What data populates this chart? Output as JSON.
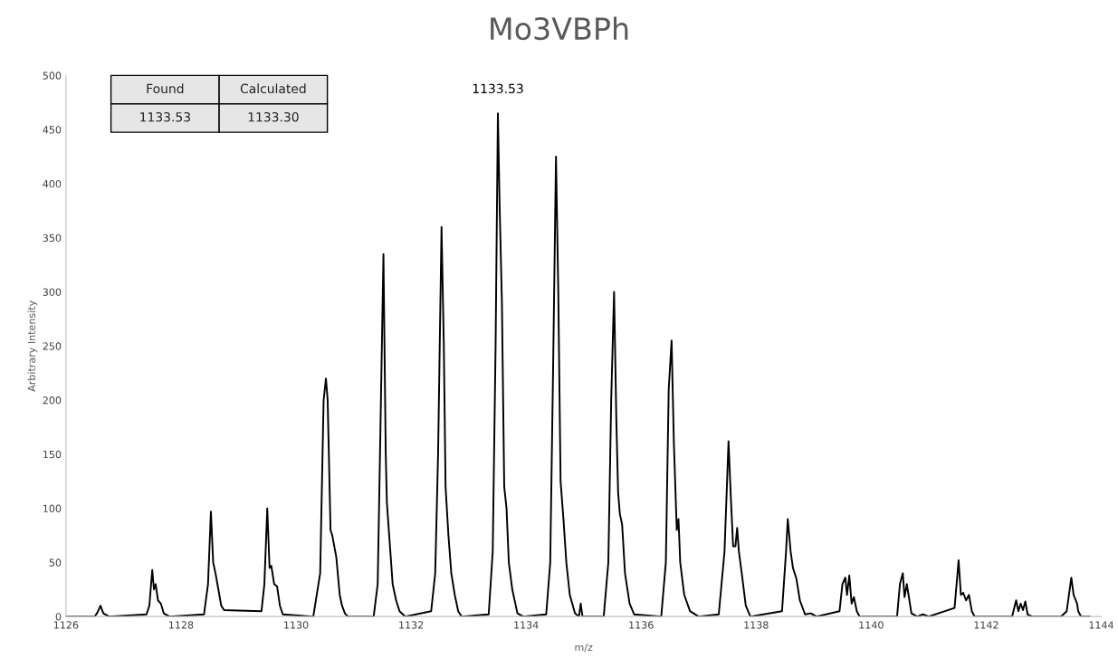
{
  "chart_data": {
    "type": "line",
    "title": "Mo3VBPh",
    "xlabel": "m/z",
    "ylabel": "Arbitrary Intensity",
    "xlim": [
      1126,
      1144
    ],
    "xticks": [
      1126,
      1128,
      1130,
      1132,
      1134,
      1136,
      1138,
      1140,
      1142,
      1144
    ],
    "ylim": [
      0,
      500
    ],
    "yticks": [
      0,
      50,
      100,
      150,
      200,
      250,
      300,
      350,
      400,
      450,
      500
    ],
    "grid": false,
    "legend": false,
    "marker": "none",
    "line_style": "solid",
    "annotations": [
      "Found",
      "Calculated",
      "1133.53",
      "1133.30",
      {
        "text": "1133.53",
        "x": 1133.51,
        "y": 465
      }
    ],
    "series": [
      {
        "color": "#000000",
        "x": [
          1126.0,
          1126.5,
          1126.55,
          1126.6,
          1126.65,
          1126.75,
          1127.4,
          1127.45,
          1127.5,
          1127.53,
          1127.56,
          1127.6,
          1127.65,
          1127.7,
          1127.8,
          1128.4,
          1128.47,
          1128.52,
          1128.56,
          1128.6,
          1128.65,
          1128.7,
          1128.75,
          1129.4,
          1129.45,
          1129.5,
          1129.54,
          1129.57,
          1129.62,
          1129.67,
          1129.72,
          1129.77,
          1130.3,
          1130.42,
          1130.48,
          1130.52,
          1130.55,
          1130.6,
          1130.63,
          1130.7,
          1130.76,
          1130.8,
          1130.85,
          1130.9,
          1131.35,
          1131.42,
          1131.47,
          1131.52,
          1131.56,
          1131.58,
          1131.62,
          1131.68,
          1131.74,
          1131.8,
          1131.9,
          1132.35,
          1132.42,
          1132.47,
          1132.53,
          1132.57,
          1132.6,
          1132.65,
          1132.7,
          1132.76,
          1132.82,
          1132.88,
          1133.35,
          1133.42,
          1133.47,
          1133.51,
          1133.54,
          1133.58,
          1133.62,
          1133.66,
          1133.7,
          1133.76,
          1133.85,
          1133.95,
          1134.35,
          1134.42,
          1134.47,
          1134.52,
          1134.56,
          1134.6,
          1134.65,
          1134.7,
          1134.76,
          1134.85,
          1134.92,
          1134.95,
          1134.98,
          1135.35,
          1135.43,
          1135.48,
          1135.53,
          1135.57,
          1135.6,
          1135.63,
          1135.67,
          1135.72,
          1135.8,
          1135.88,
          1136.35,
          1136.43,
          1136.48,
          1136.53,
          1136.57,
          1136.62,
          1136.65,
          1136.68,
          1136.75,
          1136.85,
          1137.0,
          1137.35,
          1137.45,
          1137.52,
          1137.56,
          1137.6,
          1137.64,
          1137.67,
          1137.7,
          1137.75,
          1137.82,
          1137.9,
          1138.45,
          1138.52,
          1138.55,
          1138.6,
          1138.64,
          1138.7,
          1138.76,
          1138.85,
          1138.95,
          1139.05,
          1139.45,
          1139.5,
          1139.55,
          1139.58,
          1139.62,
          1139.66,
          1139.7,
          1139.75,
          1139.8,
          1140.45,
          1140.5,
          1140.55,
          1140.58,
          1140.62,
          1140.65,
          1140.7,
          1140.8,
          1140.9,
          1141.0,
          1141.45,
          1141.52,
          1141.56,
          1141.6,
          1141.65,
          1141.7,
          1141.75,
          1141.8,
          1142.45,
          1142.52,
          1142.56,
          1142.6,
          1142.64,
          1142.68,
          1142.72,
          1142.8,
          1143.3,
          1143.4,
          1143.48,
          1143.52,
          1143.58,
          1143.6,
          1143.65,
          1143.8
        ],
        "values": [
          0,
          0,
          4,
          10,
          3,
          0,
          2,
          10,
          43,
          25,
          30,
          15,
          12,
          3,
          0,
          2,
          30,
          97,
          50,
          40,
          25,
          10,
          6,
          5,
          30,
          100,
          45,
          47,
          30,
          28,
          10,
          2,
          0,
          40,
          200,
          220,
          200,
          80,
          75,
          55,
          20,
          10,
          3,
          0,
          0,
          30,
          180,
          335,
          150,
          105,
          75,
          30,
          15,
          5,
          0,
          5,
          40,
          150,
          360,
          250,
          120,
          75,
          40,
          20,
          5,
          0,
          2,
          60,
          250,
          465,
          380,
          290,
          120,
          100,
          50,
          25,
          3,
          0,
          2,
          50,
          230,
          425,
          300,
          125,
          90,
          50,
          20,
          3,
          0,
          12,
          0,
          0,
          50,
          200,
          300,
          180,
          115,
          95,
          85,
          40,
          12,
          2,
          0,
          50,
          210,
          255,
          160,
          80,
          90,
          50,
          20,
          5,
          0,
          2,
          60,
          162,
          110,
          65,
          65,
          82,
          60,
          40,
          10,
          0,
          5,
          60,
          90,
          60,
          45,
          35,
          15,
          2,
          3,
          0,
          5,
          30,
          36,
          20,
          38,
          12,
          18,
          5,
          0,
          0,
          30,
          40,
          18,
          30,
          20,
          3,
          0,
          2,
          0,
          8,
          52,
          20,
          22,
          15,
          20,
          5,
          0,
          0,
          15,
          5,
          12,
          6,
          14,
          2,
          0,
          0,
          5,
          36,
          20,
          12,
          5,
          0,
          0
        ]
      }
    ]
  }
}
